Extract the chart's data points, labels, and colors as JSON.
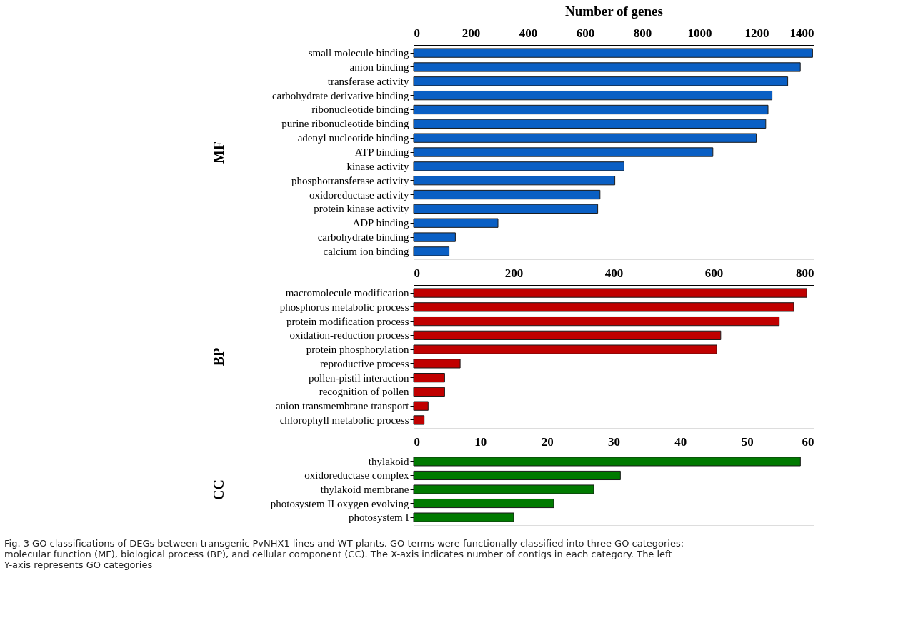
{
  "chart_data": [
    {
      "type": "bar",
      "orientation": "horizontal",
      "xlabel": "Number of genes",
      "ylabel": "MF",
      "color": "#0a5fc4",
      "categories": [
        "small molecule binding",
        "anion binding",
        "transferase activity",
        "carbohydrate derivative binding",
        "ribonucleotide binding",
        "purine ribonucleotide binding",
        "adenyl nucleotide binding",
        "ATP binding",
        "kinase activity",
        "phosphotransferase activity",
        "oxidoreductase activity",
        "protein kinase activity",
        "ADP binding",
        "carbohydrate binding",
        "calcium ion binding"
      ],
      "values": [
        1396,
        1353,
        1309,
        1254,
        1240,
        1232,
        1199,
        1047,
        736,
        704,
        652,
        644,
        295,
        146,
        124
      ],
      "xlim": [
        0,
        1400
      ],
      "xticks": [
        0,
        200,
        400,
        600,
        800,
        1000,
        1200,
        1400
      ]
    },
    {
      "type": "bar",
      "orientation": "horizontal",
      "ylabel": "BP",
      "color": "#c00000",
      "categories": [
        "macromolecule modification",
        "phosphorus metabolic process",
        "protein modification process",
        "oxidation-reduction process",
        "protein phosphorylation",
        "reproductive process",
        "pollen-pistil interaction",
        "recognition of pollen",
        "anion transmembrane transport",
        "chlorophyll metabolic process"
      ],
      "values": [
        786,
        760,
        731,
        614,
        606,
        93,
        62,
        62,
        29,
        21
      ],
      "xlim": [
        0,
        800
      ],
      "xticks": [
        0,
        200,
        400,
        600,
        800
      ]
    },
    {
      "type": "bar",
      "orientation": "horizontal",
      "ylabel": "CC",
      "color": "#007a00",
      "categories": [
        "thylakoid",
        "oxidoreductase complex",
        "thylakoid membrane",
        "photosystem II oxygen evolving",
        "photosystem I"
      ],
      "values": [
        58,
        31,
        27,
        21,
        15
      ],
      "xlim": [
        0,
        60
      ],
      "xticks": [
        0,
        10,
        20,
        30,
        40,
        50,
        60
      ],
      "annotations": [
        "Fig. 3 GO classifications of DEGs between transgenic PvNHX1 lines and WT plants. GO terms were functionally classified into three GO categories: molecular function (MF), biological process (BP), and cellular component (CC). The X-axis indicates number of contigs in each category. The left Y-axis represents GO categories"
      ]
    }
  ]
}
